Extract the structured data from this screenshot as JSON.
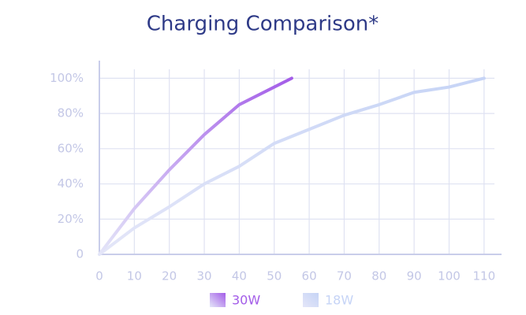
{
  "chart_data": {
    "type": "line",
    "title": "Charging Comparison*",
    "series": [
      {
        "name": "30W",
        "color": "#a35ce8",
        "x": [
          0,
          10,
          20,
          30,
          40,
          50,
          55
        ],
        "values": [
          0,
          26,
          48,
          68,
          85,
          95,
          100
        ]
      },
      {
        "name": "18W",
        "color": "#c6d4f6",
        "x": [
          0,
          10,
          20,
          30,
          40,
          50,
          60,
          70,
          80,
          90,
          100,
          110
        ],
        "values": [
          0,
          15,
          27,
          40,
          50,
          63,
          71,
          79,
          85,
          92,
          95,
          100
        ]
      }
    ],
    "xlim": [
      0,
      115
    ],
    "ylim": [
      0,
      110
    ],
    "xticks": [
      0,
      10,
      20,
      30,
      40,
      50,
      60,
      70,
      80,
      90,
      100,
      110
    ],
    "yticks": [
      0,
      {
        "value": 20,
        "label": "20%"
      },
      {
        "value": 40,
        "label": "40%"
      },
      {
        "value": 60,
        "label": "60%"
      },
      {
        "value": 80,
        "label": "80%"
      },
      {
        "value": 100,
        "label": "100%"
      }
    ],
    "grid": true
  }
}
